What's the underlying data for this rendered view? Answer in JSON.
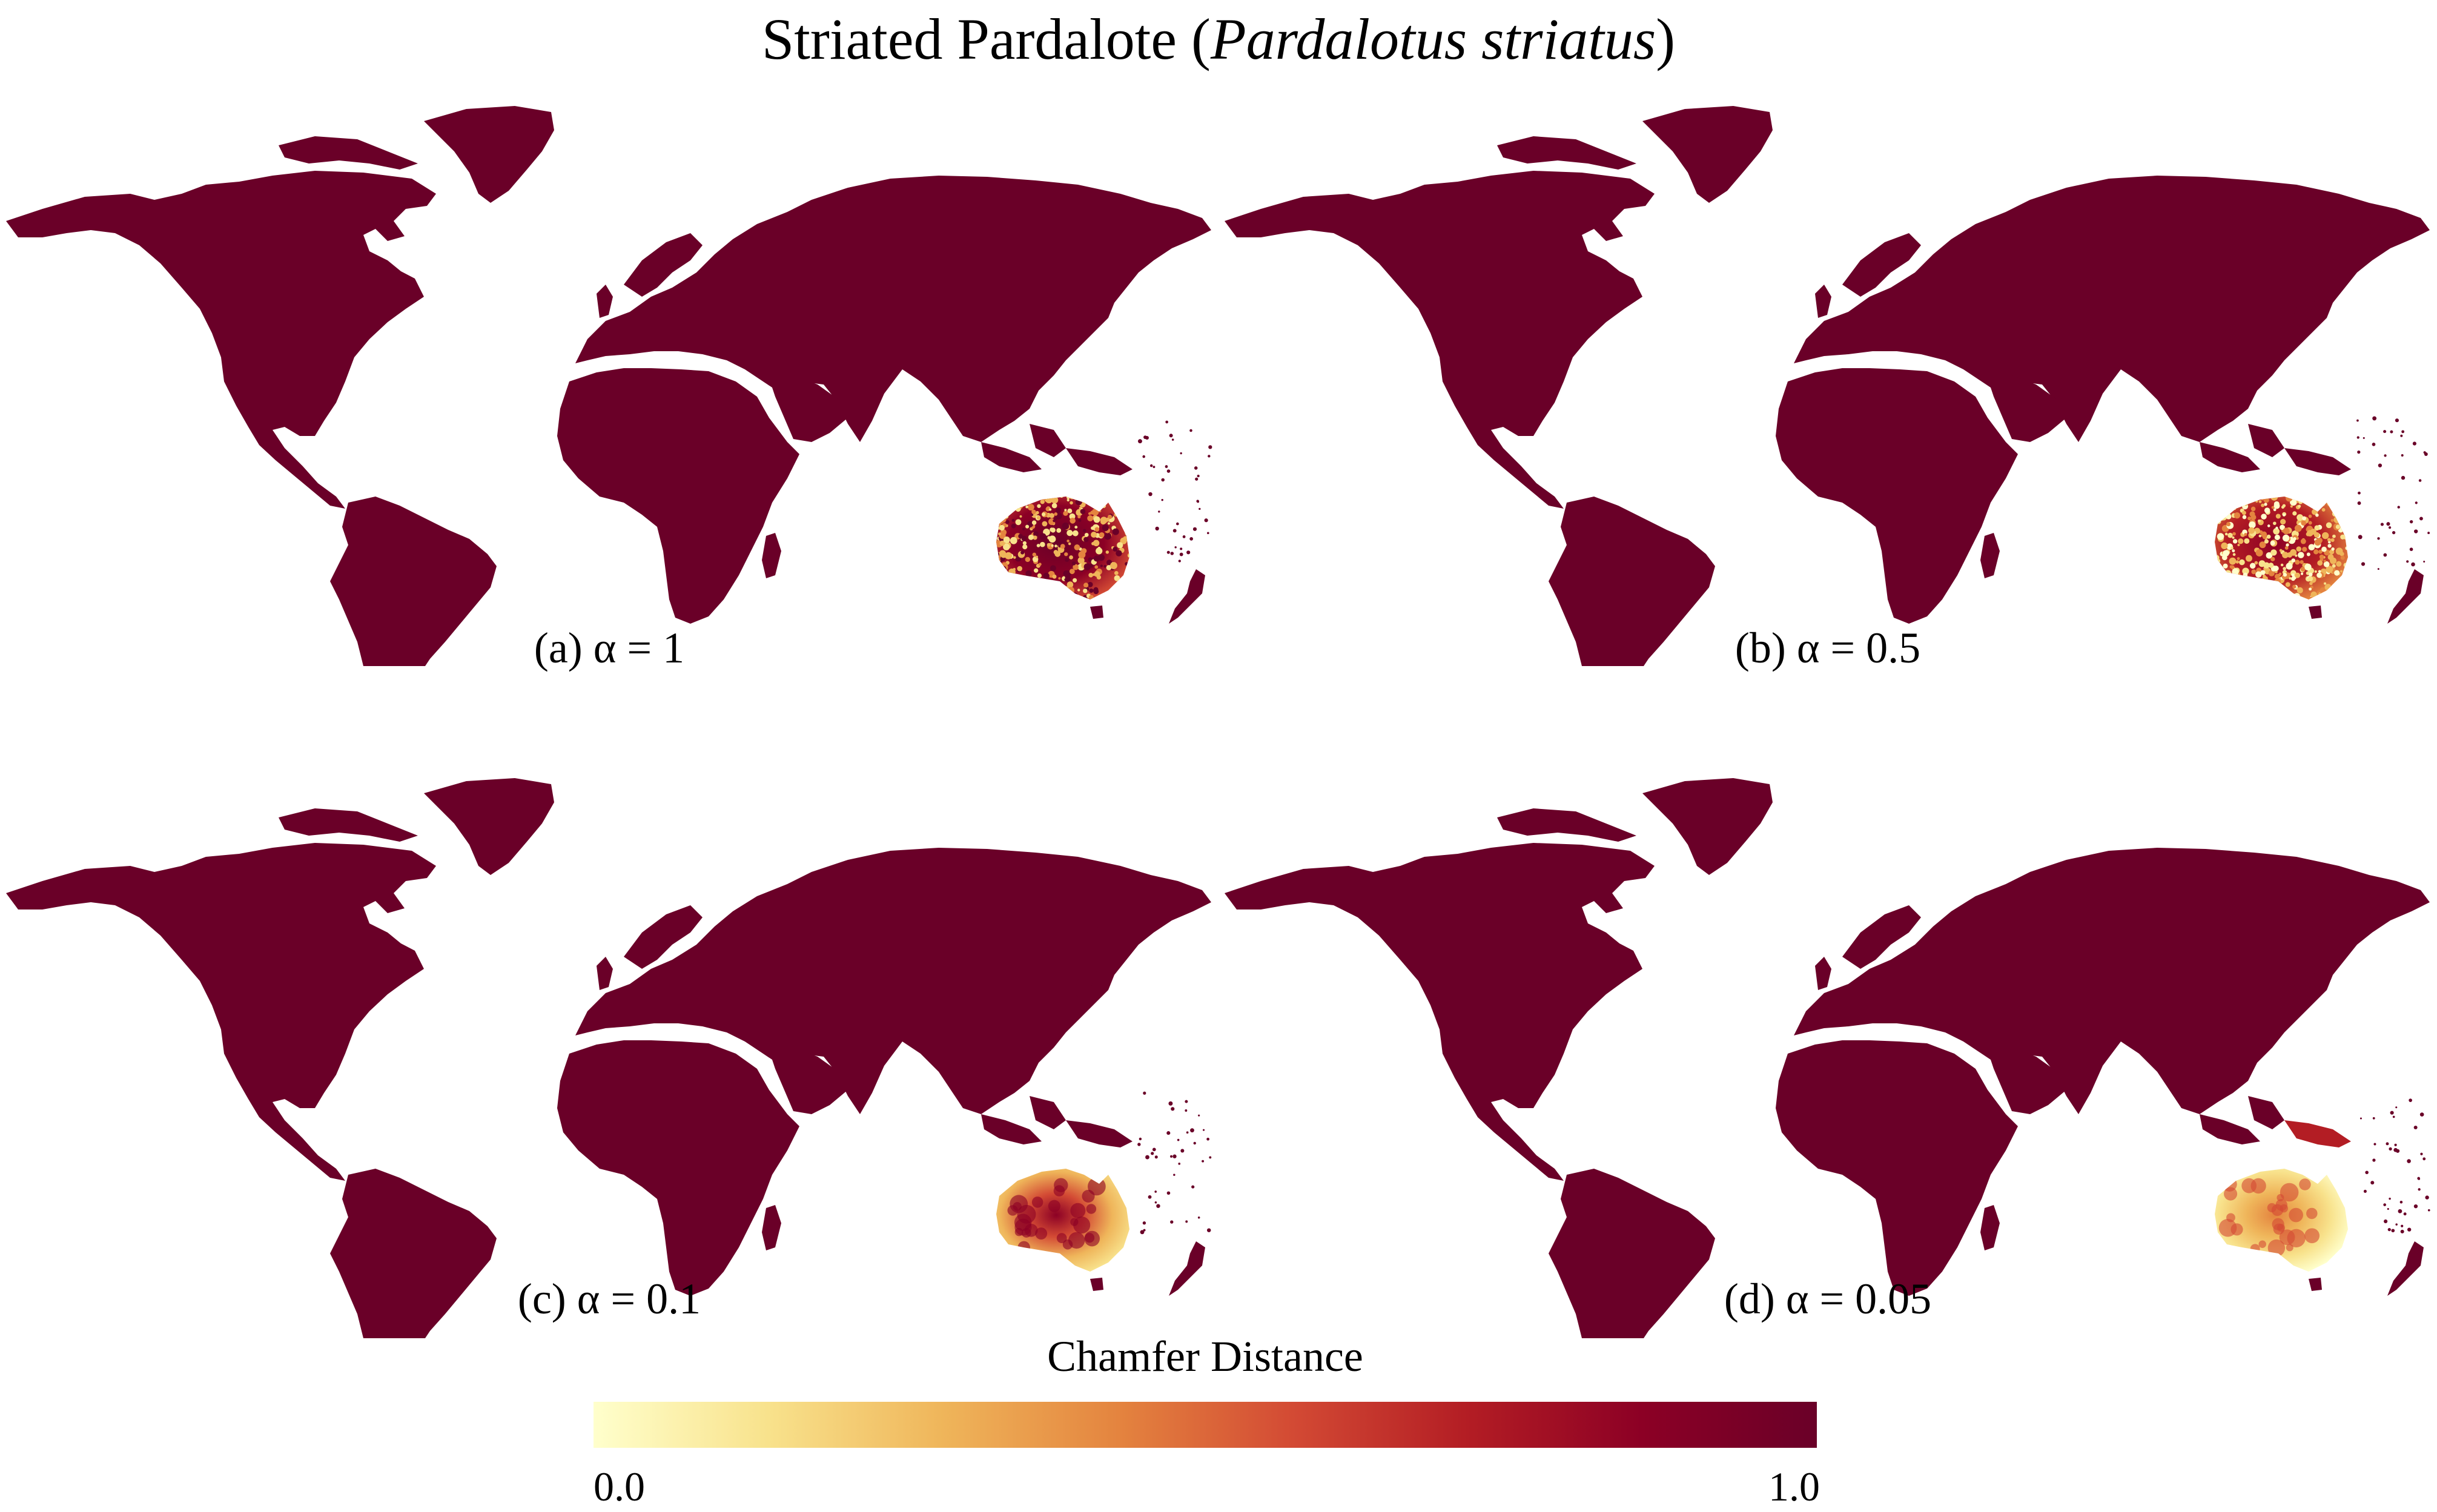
{
  "figure": {
    "title_prefix": "Striated Pardalote (",
    "title_species": "Pardalotus striatus",
    "title_suffix": ")"
  },
  "colors": {
    "land": "#6a0028",
    "background": "#ffffff",
    "scale": [
      "#ffffcc",
      "#f8e28c",
      "#efb55a",
      "#e4843f",
      "#d34a34",
      "#b31d24",
      "#8c0025",
      "#6a0028"
    ]
  },
  "panels": [
    {
      "id": "a",
      "caption": "(a) α = 1",
      "australia_style": "speckled",
      "new_guinea_highlight": false
    },
    {
      "id": "b",
      "caption": "(b) α = 0.5",
      "australia_style": "speckled-light",
      "new_guinea_highlight": false
    },
    {
      "id": "c",
      "caption": "(c) α = 0.1",
      "australia_style": "smooth",
      "new_guinea_highlight": false
    },
    {
      "id": "d",
      "caption": "(d) α = 0.05",
      "australia_style": "smooth-light",
      "new_guinea_highlight": true
    }
  ],
  "colorbar": {
    "label": "Chamfer Distance",
    "min_label": "0.0",
    "max_label": "1.0",
    "min": 0.0,
    "max": 1.0,
    "colormap": "YlOrRd"
  }
}
